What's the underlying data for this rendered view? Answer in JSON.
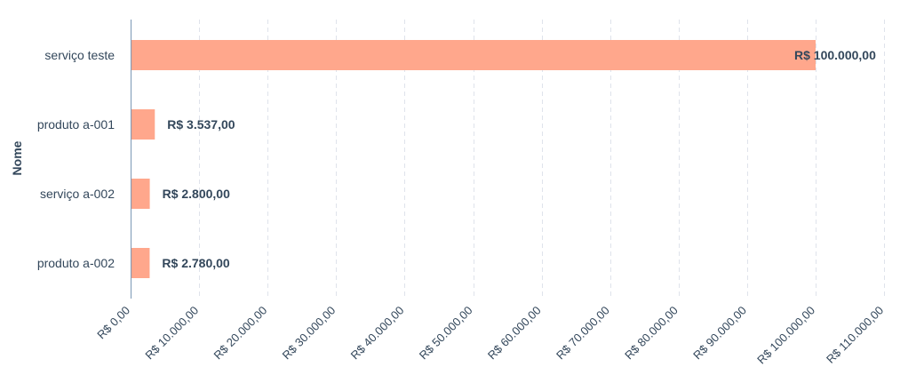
{
  "chart_data": {
    "type": "bar",
    "orientation": "horizontal",
    "title": "",
    "xlabel": "",
    "ylabel": "Nome",
    "categories": [
      "serviço teste",
      "produto a-001",
      "serviço a-002",
      "produto a-002"
    ],
    "values": [
      100000,
      3537,
      2800,
      2780
    ],
    "value_labels": [
      "R$ 100.000,00",
      "R$ 3.537,00",
      "R$ 2.800,00",
      "R$ 2.780,00"
    ],
    "xlim": [
      0,
      110000
    ],
    "x_ticks": [
      0,
      10000,
      20000,
      30000,
      40000,
      50000,
      60000,
      70000,
      80000,
      90000,
      100000,
      110000
    ],
    "x_tick_labels": [
      "R$ 0,00",
      "R$ 10.000,00",
      "R$ 20.000,00",
      "R$ 30.000,00",
      "R$ 40.000,00",
      "R$ 50.000,00",
      "R$ 60.000,00",
      "R$ 70.000,00",
      "R$ 80.000,00",
      "R$ 90.000,00",
      "R$ 100.000,00",
      "R$ 110.000,00"
    ],
    "grid": true,
    "legend": "none",
    "bar_color": "#ffa78c"
  }
}
